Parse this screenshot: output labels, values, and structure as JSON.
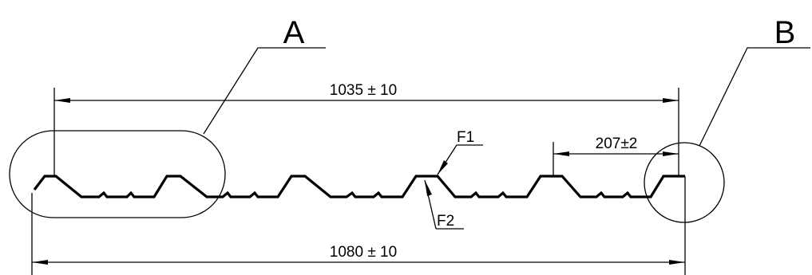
{
  "detail_labels": {
    "a": "A",
    "b": "B"
  },
  "dimensions": {
    "pitch_width": "1035 ± 10",
    "total_width": "1080 ± 10",
    "rib_pitch": "207±2"
  },
  "fold_labels": {
    "f1": "F1",
    "f2": "F2"
  }
}
